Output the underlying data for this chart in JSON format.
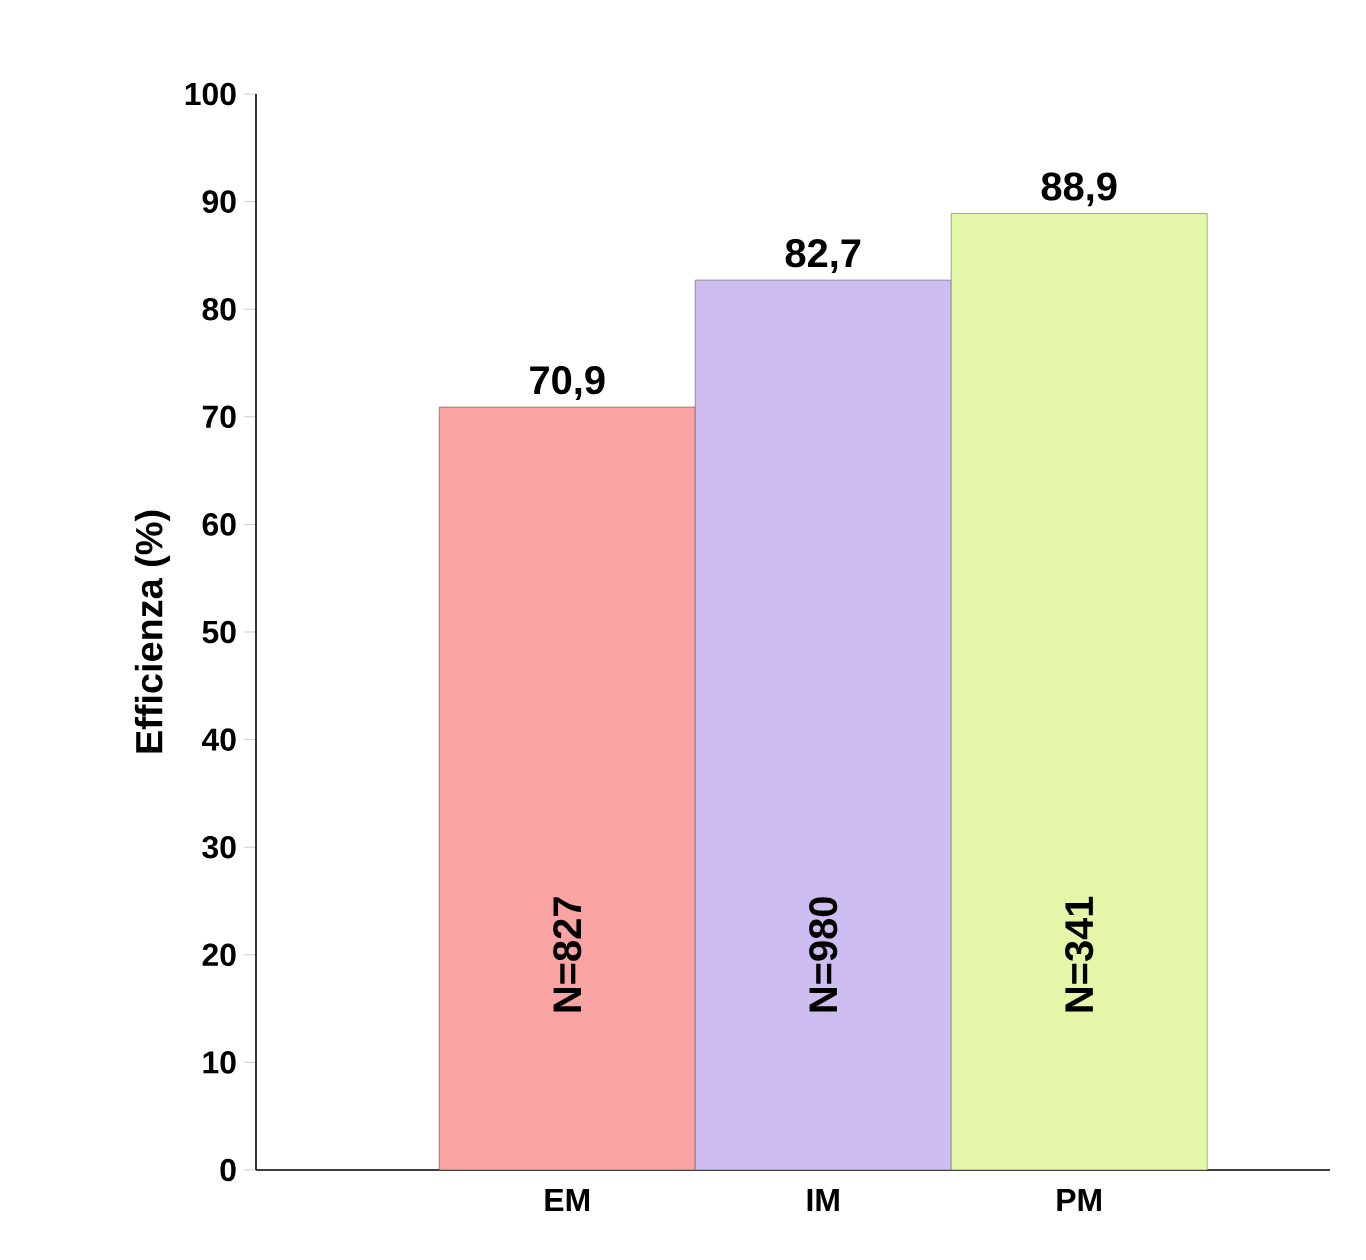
{
  "chart_data": {
    "type": "bar",
    "ylabel": "Efficienza (%)",
    "categories": [
      "EM",
      "IM",
      "PM"
    ],
    "values": [
      70.9,
      82.7,
      88.9
    ],
    "value_labels": [
      "70,9",
      "82,7",
      "88,9"
    ],
    "colors": [
      "#f9a3a3",
      "#cdbdf0",
      "#e4f7a8"
    ],
    "ylim": [
      0,
      100
    ],
    "yticks": [
      0,
      10,
      20,
      30,
      40,
      50,
      60,
      70,
      80,
      90,
      100
    ],
    "annotations": [
      "N=827",
      "N=980",
      "N=341"
    ],
    "grid": false
  }
}
